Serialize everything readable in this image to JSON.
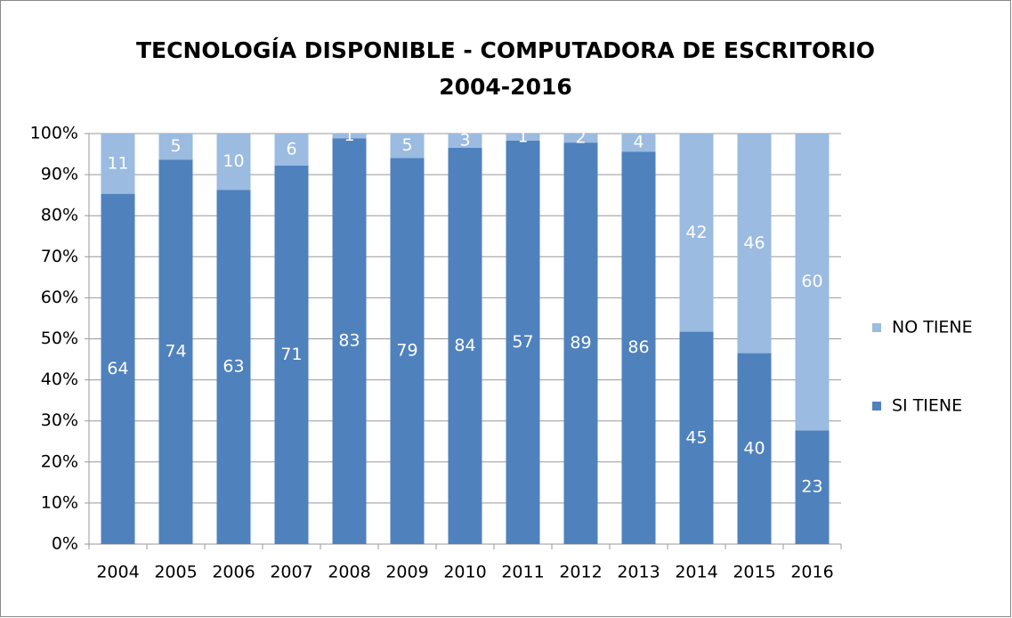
{
  "chart_data": {
    "type": "bar",
    "stacking": "percent",
    "title": [
      "TECNOLOGÍA DISPONIBLE - COMPUTADORA DE ESCRITORIO",
      "2004-2016"
    ],
    "categories": [
      "2004",
      "2005",
      "2006",
      "2007",
      "2008",
      "2009",
      "2010",
      "2011",
      "2012",
      "2013",
      "2014",
      "2015",
      "2016"
    ],
    "series": [
      {
        "name": "SI TIENE",
        "color": "#4f81bd",
        "values": [
          64,
          74,
          63,
          71,
          83,
          79,
          84,
          57,
          89,
          86,
          45,
          40,
          23
        ]
      },
      {
        "name": "NO TIENE",
        "color": "#9bbbe0",
        "values": [
          11,
          5,
          10,
          6,
          1,
          5,
          3,
          1,
          2,
          4,
          42,
          46,
          60
        ]
      }
    ],
    "ylim": [
      0,
      100
    ],
    "yticks": [
      {
        "value": 0,
        "label": "0%"
      },
      {
        "value": 10,
        "label": "10%"
      },
      {
        "value": 20,
        "label": "20%"
      },
      {
        "value": 30,
        "label": "30%"
      },
      {
        "value": 40,
        "label": "40%"
      },
      {
        "value": 50,
        "label": "50%"
      },
      {
        "value": 60,
        "label": "60%"
      },
      {
        "value": 70,
        "label": "70%"
      },
      {
        "value": 80,
        "label": "80%"
      },
      {
        "value": 90,
        "label": "90%"
      },
      {
        "value": 100,
        "label": "100%"
      }
    ],
    "grid": true,
    "legend": "right"
  }
}
